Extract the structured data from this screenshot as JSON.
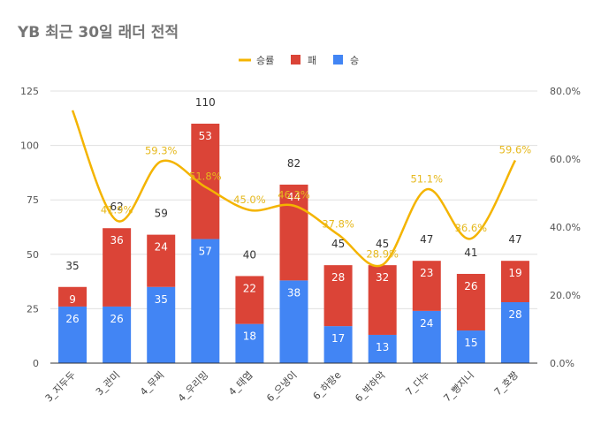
{
  "chart_data": {
    "type": "bar",
    "title": "YB 최근 30일 래더 전적",
    "categories": [
      "3_지두두",
      "3_관미",
      "4_무찌",
      "4_우리밍",
      "4_태엽",
      "6_으냉이",
      "6_하랑e",
      "6_박하악",
      "7_다누",
      "7_빵지니",
      "7_호짱"
    ],
    "series": [
      {
        "name": "승",
        "color": "#4285f4",
        "values": [
          26,
          26,
          35,
          57,
          18,
          38,
          17,
          13,
          24,
          15,
          28
        ]
      },
      {
        "name": "패",
        "color": "#db4437",
        "values": [
          9,
          36,
          24,
          53,
          22,
          44,
          28,
          32,
          23,
          26,
          19
        ]
      },
      {
        "name": "승률",
        "color": "#f4b400",
        "axis": "right",
        "values": [
          74.3,
          41.9,
          59.3,
          51.8,
          45.0,
          46.3,
          37.8,
          28.9,
          51.1,
          36.6,
          59.6
        ]
      }
    ],
    "totals": [
      35,
      62,
      59,
      110,
      40,
      82,
      45,
      45,
      47,
      41,
      47
    ],
    "rate_labels": [
      "",
      "41.9%",
      "59.3%",
      "51.8%",
      "45.0%",
      "46.3%",
      "37.8%",
      "28.9%",
      "51.1%",
      "36.6%",
      "59.6%"
    ],
    "win_labels": [
      "26",
      "26",
      "35",
      "57",
      "18",
      "38",
      "17",
      "13",
      "24",
      "15",
      "28"
    ],
    "loss_labels": [
      "9",
      "36",
      "24",
      "53",
      "22",
      "44",
      "28",
      "32",
      "23",
      "26",
      "19"
    ],
    "total_labels": [
      "35",
      "62",
      "59",
      "110",
      "40",
      "82",
      "45",
      "45",
      "47",
      "41",
      "47"
    ],
    "ylim_left": [
      0,
      125
    ],
    "ylim_right": [
      0,
      80
    ],
    "left_ticks": [
      "0",
      "25",
      "50",
      "75",
      "100",
      "125"
    ],
    "right_ticks": [
      "0.0%",
      "20.0%",
      "40.0%",
      "60.0%",
      "80.0%"
    ],
    "legend": [
      "승률",
      "패",
      "승"
    ],
    "legend_position": "top-center",
    "grid": true
  }
}
